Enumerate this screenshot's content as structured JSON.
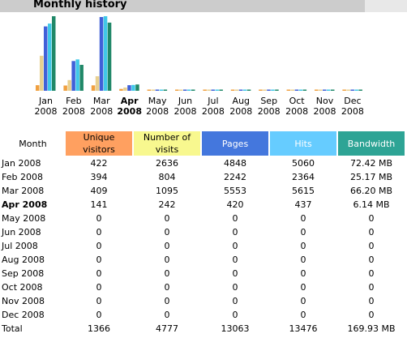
{
  "header": {
    "title": "Monthly history"
  },
  "colors": {
    "unique_visitors": "#f0a040",
    "visits": "#e8d090",
    "pages": "#4060d8",
    "hits": "#40c8e8",
    "bandwidth": "#208868"
  },
  "chart_data": {
    "type": "bar",
    "categories": [
      "Jan 2008",
      "Feb 2008",
      "Mar 2008",
      "Apr 2008",
      "May 2008",
      "Jun 2008",
      "Jul 2008",
      "Aug 2008",
      "Sep 2008",
      "Oct 2008",
      "Nov 2008",
      "Dec 2008"
    ],
    "category_labels": [
      {
        "m": "Jan",
        "y": "2008",
        "bold": false
      },
      {
        "m": "Feb",
        "y": "2008",
        "bold": false
      },
      {
        "m": "Mar",
        "y": "2008",
        "bold": false
      },
      {
        "m": "Apr",
        "y": "2008",
        "bold": true
      },
      {
        "m": "May",
        "y": "2008",
        "bold": false
      },
      {
        "m": "Jun",
        "y": "2008",
        "bold": false
      },
      {
        "m": "Jul",
        "y": "2008",
        "bold": false
      },
      {
        "m": "Aug",
        "y": "2008",
        "bold": false
      },
      {
        "m": "Sep",
        "y": "2008",
        "bold": false
      },
      {
        "m": "Oct",
        "y": "2008",
        "bold": false
      },
      {
        "m": "Nov",
        "y": "2008",
        "bold": false
      },
      {
        "m": "Dec",
        "y": "2008",
        "bold": false
      }
    ],
    "series": [
      {
        "name": "Unique visitors",
        "values": [
          422,
          394,
          409,
          141,
          0,
          0,
          0,
          0,
          0,
          0,
          0,
          0
        ]
      },
      {
        "name": "Number of visits",
        "values": [
          2636,
          804,
          1095,
          242,
          0,
          0,
          0,
          0,
          0,
          0,
          0,
          0
        ]
      },
      {
        "name": "Pages",
        "values": [
          4848,
          2242,
          5553,
          420,
          0,
          0,
          0,
          0,
          0,
          0,
          0,
          0
        ]
      },
      {
        "name": "Hits",
        "values": [
          5060,
          2364,
          5615,
          437,
          0,
          0,
          0,
          0,
          0,
          0,
          0,
          0
        ]
      },
      {
        "name": "Bandwidth",
        "values": [
          72.42,
          25.17,
          66.2,
          6.14,
          0,
          0,
          0,
          0,
          0,
          0,
          0,
          0
        ]
      }
    ]
  },
  "table": {
    "headers": {
      "month": "Month",
      "unique": [
        "Unique",
        "visitors"
      ],
      "visits": [
        "Number of",
        "visits"
      ],
      "pages": "Pages",
      "hits": "Hits",
      "bandwidth": "Bandwidth"
    },
    "rows": [
      {
        "month": "Jan 2008",
        "unique": "422",
        "visits": "2636",
        "pages": "4848",
        "hits": "5060",
        "bandwidth": "72.42 MB",
        "bold": false
      },
      {
        "month": "Feb 2008",
        "unique": "394",
        "visits": "804",
        "pages": "2242",
        "hits": "2364",
        "bandwidth": "25.17 MB",
        "bold": false
      },
      {
        "month": "Mar 2008",
        "unique": "409",
        "visits": "1095",
        "pages": "5553",
        "hits": "5615",
        "bandwidth": "66.20 MB",
        "bold": false
      },
      {
        "month": "Apr 2008",
        "unique": "141",
        "visits": "242",
        "pages": "420",
        "hits": "437",
        "bandwidth": "6.14 MB",
        "bold": true
      },
      {
        "month": "May 2008",
        "unique": "0",
        "visits": "0",
        "pages": "0",
        "hits": "0",
        "bandwidth": "0",
        "bold": false
      },
      {
        "month": "Jun 2008",
        "unique": "0",
        "visits": "0",
        "pages": "0",
        "hits": "0",
        "bandwidth": "0",
        "bold": false
      },
      {
        "month": "Jul 2008",
        "unique": "0",
        "visits": "0",
        "pages": "0",
        "hits": "0",
        "bandwidth": "0",
        "bold": false
      },
      {
        "month": "Aug 2008",
        "unique": "0",
        "visits": "0",
        "pages": "0",
        "hits": "0",
        "bandwidth": "0",
        "bold": false
      },
      {
        "month": "Sep 2008",
        "unique": "0",
        "visits": "0",
        "pages": "0",
        "hits": "0",
        "bandwidth": "0",
        "bold": false
      },
      {
        "month": "Oct 2008",
        "unique": "0",
        "visits": "0",
        "pages": "0",
        "hits": "0",
        "bandwidth": "0",
        "bold": false
      },
      {
        "month": "Nov 2008",
        "unique": "0",
        "visits": "0",
        "pages": "0",
        "hits": "0",
        "bandwidth": "0",
        "bold": false
      },
      {
        "month": "Dec 2008",
        "unique": "0",
        "visits": "0",
        "pages": "0",
        "hits": "0",
        "bandwidth": "0",
        "bold": false
      }
    ],
    "total": {
      "label": "Total",
      "unique": "1366",
      "visits": "4777",
      "pages": "13063",
      "hits": "13476",
      "bandwidth": "169.93 MB"
    }
  }
}
